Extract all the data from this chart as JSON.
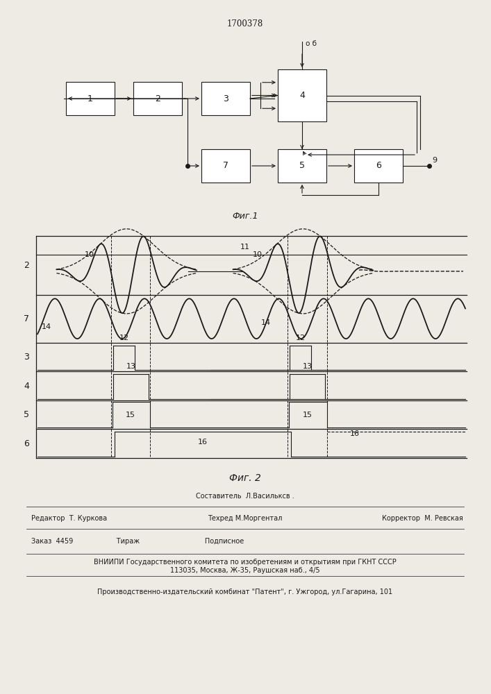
{
  "patent_number": "1700378",
  "fig1_caption": "Фиг.1",
  "fig2_caption": "Фиг. 2",
  "background_color": "#eeebe5",
  "line_color": "#1a1a1a",
  "footer": {
    "line1_center": "Составитель  Л.Васильксв .",
    "line1_left": "Редактор  Т. Куркова",
    "line1_right": "Корректор  М. Ревская",
    "line2_center": "Техред М.Моргентал",
    "line3": "Заказ  4459                    Тираж                              Подписное",
    "line4": "ВНИИПИ Государственного комитета по изобретениям и открытиям при ГКНТ СССР",
    "line5": "113035, Москва, Ж-35, Раушская наб., 4/5",
    "line6": "Производственно-издательский комбинат \"Патент\", г. Ужгород, ул.Гагарина, 101"
  }
}
